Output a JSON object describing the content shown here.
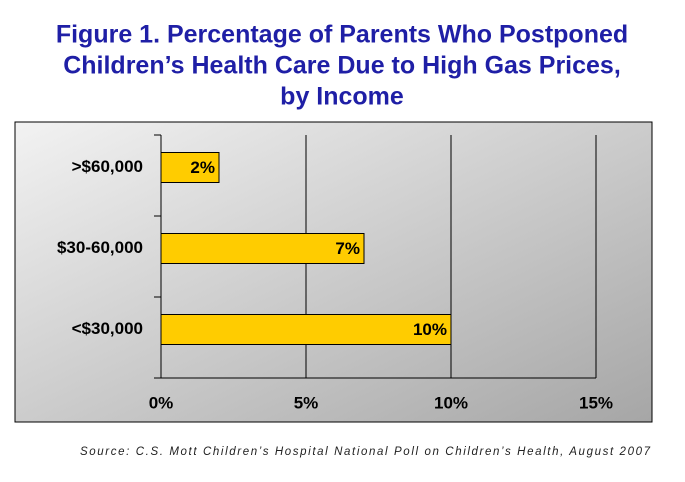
{
  "chart_data": {
    "type": "bar",
    "orientation": "horizontal",
    "title": [
      "Figure 1. Percentage of Parents Who Postponed",
      "Children’s Health Care Due to High Gas Prices,",
      "by Income"
    ],
    "categories": [
      ">$60,000",
      "$30-60,000",
      "<$30,000"
    ],
    "values": [
      2,
      7,
      10
    ],
    "value_labels": [
      "2%",
      "7%",
      "10%"
    ],
    "color": "#ffcc00",
    "xlim": [
      0,
      15
    ],
    "xticks": [
      {
        "value": 0,
        "label": "0%"
      },
      {
        "value": 5,
        "label": "5%"
      },
      {
        "value": 10,
        "label": "10%"
      },
      {
        "value": 15,
        "label": "15%"
      }
    ],
    "grid": true,
    "source": "Source: C.S. Mott Children’s Hospital National Poll on Children’s Health, August 2007"
  }
}
